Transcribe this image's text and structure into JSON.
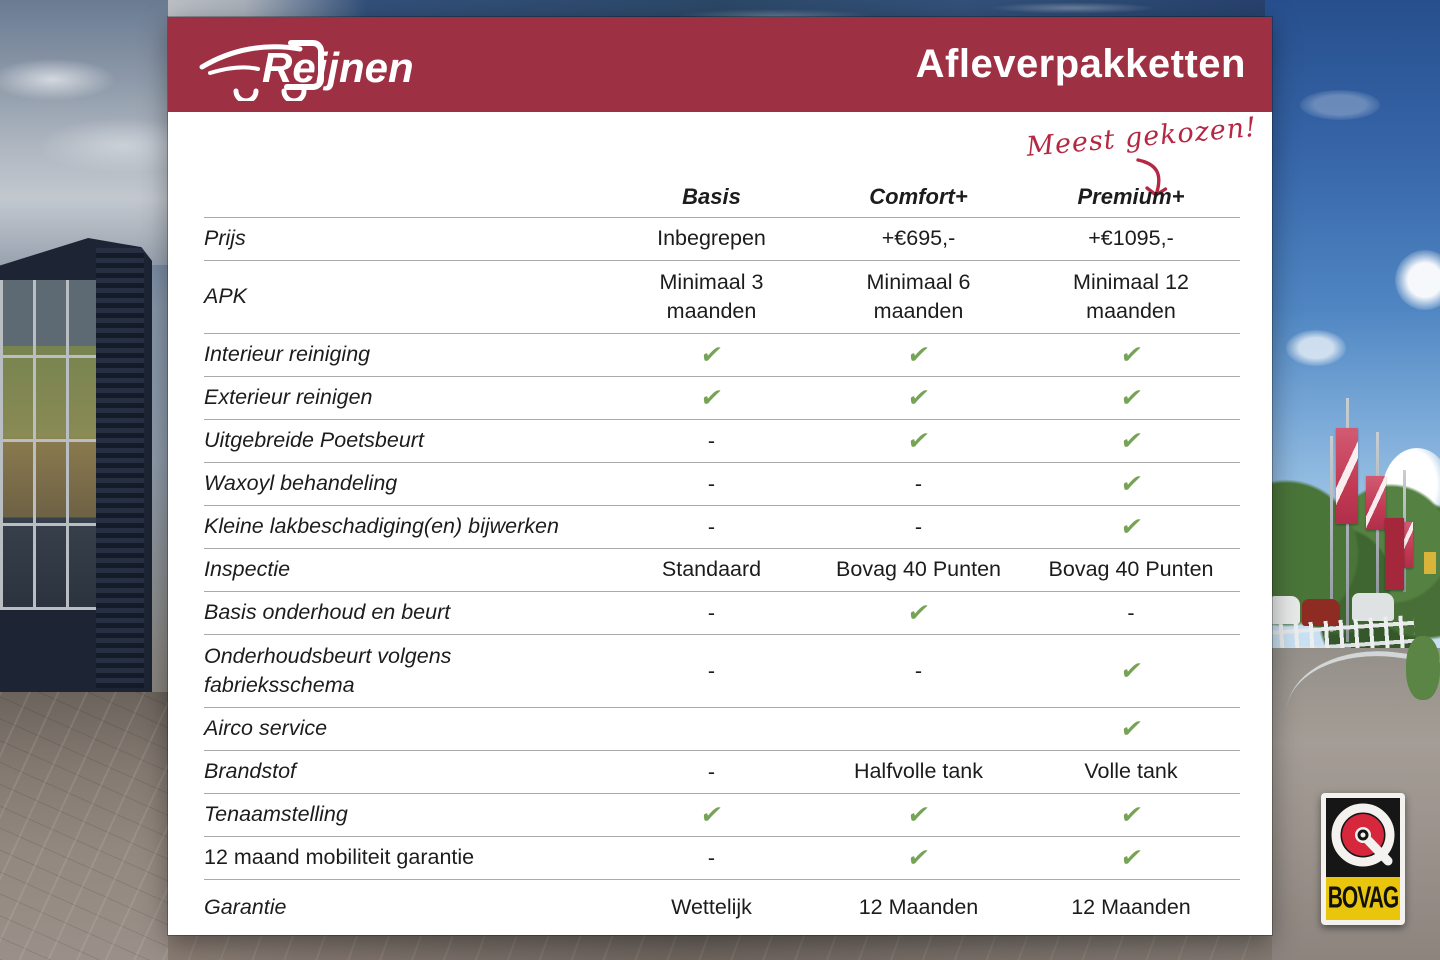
{
  "header": {
    "brand": "Reijnen",
    "title": "Afleverpakketten"
  },
  "annotation": {
    "text": "Meest gekozen!"
  },
  "table": {
    "columns": [
      "Basis",
      "Comfort+",
      "Premium+"
    ],
    "rows": [
      {
        "label": "Prijs",
        "values": [
          "Inbegrepen",
          "+€695,-",
          "+€1095,-"
        ]
      },
      {
        "label": "APK",
        "values": [
          "Minimaal 3 maanden",
          "Minimaal 6 maanden",
          "Minimaal 12 maanden"
        ],
        "tall": true
      },
      {
        "label": "Interieur reiniging",
        "values": [
          "check",
          "check",
          "check"
        ]
      },
      {
        "label": "Exterieur reinigen",
        "values": [
          "check",
          "check",
          "check"
        ]
      },
      {
        "label": "Uitgebreide Poetsbeurt",
        "values": [
          "dash",
          "check",
          "check"
        ]
      },
      {
        "label": "Waxoyl behandeling",
        "values": [
          "dash",
          "dash",
          "check"
        ]
      },
      {
        "label": "Kleine lakbeschadiging(en) bijwerken",
        "values": [
          "dash",
          "dash",
          "check"
        ]
      },
      {
        "label": "Inspectie",
        "values": [
          "Standaard",
          "Bovag 40 Punten",
          "Bovag 40 Punten"
        ]
      },
      {
        "label": "Basis onderhoud en beurt",
        "values": [
          "dash",
          "check",
          "dash"
        ]
      },
      {
        "label": "Onderhoudsbeurt volgens fabrieksschema",
        "values": [
          "dash",
          "dash",
          "check"
        ],
        "tall": true
      },
      {
        "label": "Airco service",
        "values": [
          "",
          "",
          "check"
        ]
      },
      {
        "label": "Brandstof",
        "values": [
          "dash",
          "Halfvolle tank",
          "Volle tank"
        ]
      },
      {
        "label": "Tenaamstelling",
        "values": [
          "check",
          "check",
          "check"
        ]
      },
      {
        "label": "12 maand mobiliteit garantie",
        "values": [
          "dash",
          "check",
          "check"
        ],
        "upright": true
      },
      {
        "label": "Garantie",
        "values": [
          "Wettelijk",
          "12 Maanden",
          "12 Maanden"
        ],
        "last": true
      }
    ]
  },
  "icons": {
    "check_glyph": "✔",
    "dash_glyph": "-"
  },
  "bovag": {
    "label": "BOVAG"
  },
  "colors": {
    "brand_red": "#9e3044",
    "annotation_red": "#b52843",
    "check_green": "#76a356",
    "table_text": "#1c1c1c",
    "separator": "#a9a9a9",
    "bovag_yellow": "#e9c50b",
    "bovag_red": "#d6273c"
  }
}
